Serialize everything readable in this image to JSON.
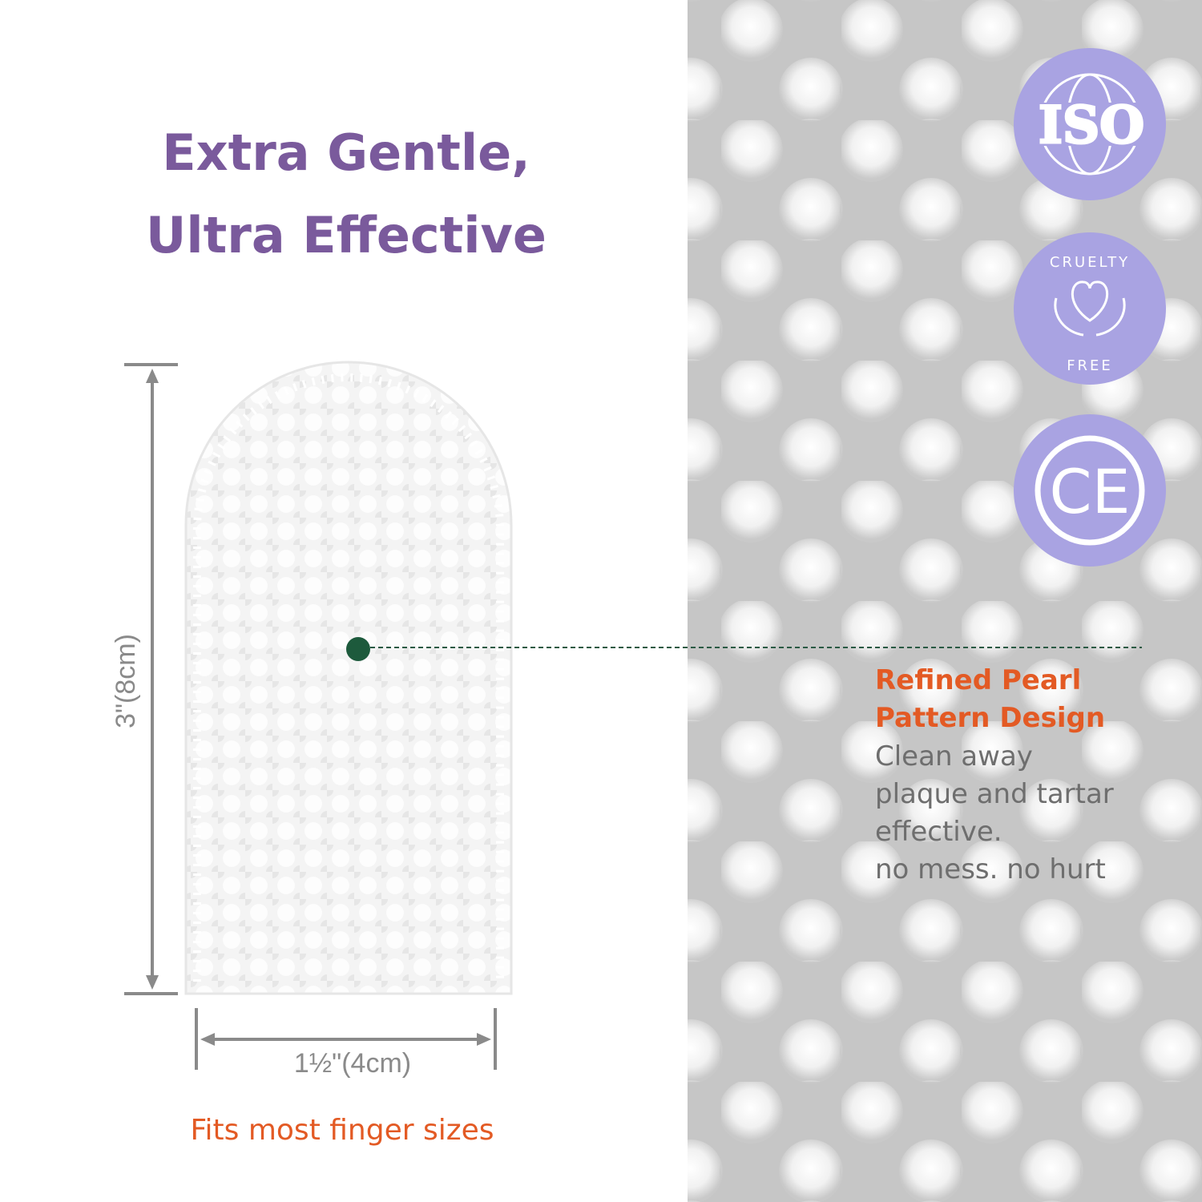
{
  "header": {
    "title_lines": [
      "Extra Gentle,",
      "Ultra Effective"
    ]
  },
  "dimensions": {
    "height": "3\"(8cm)",
    "width": "1½\"(4cm)"
  },
  "caption": "Fits most finger sizes",
  "badges": {
    "iso": "ISO",
    "cruelty_top": "CRUELTY",
    "cruelty_bottom": "FREE",
    "ce": "CE"
  },
  "callout": {
    "title_lines": [
      "Refined Pearl",
      "Pattern Design"
    ],
    "body_lines": [
      "Clean away",
      "plaque and tartar",
      "effective.",
      "no mess. no hurt"
    ]
  }
}
